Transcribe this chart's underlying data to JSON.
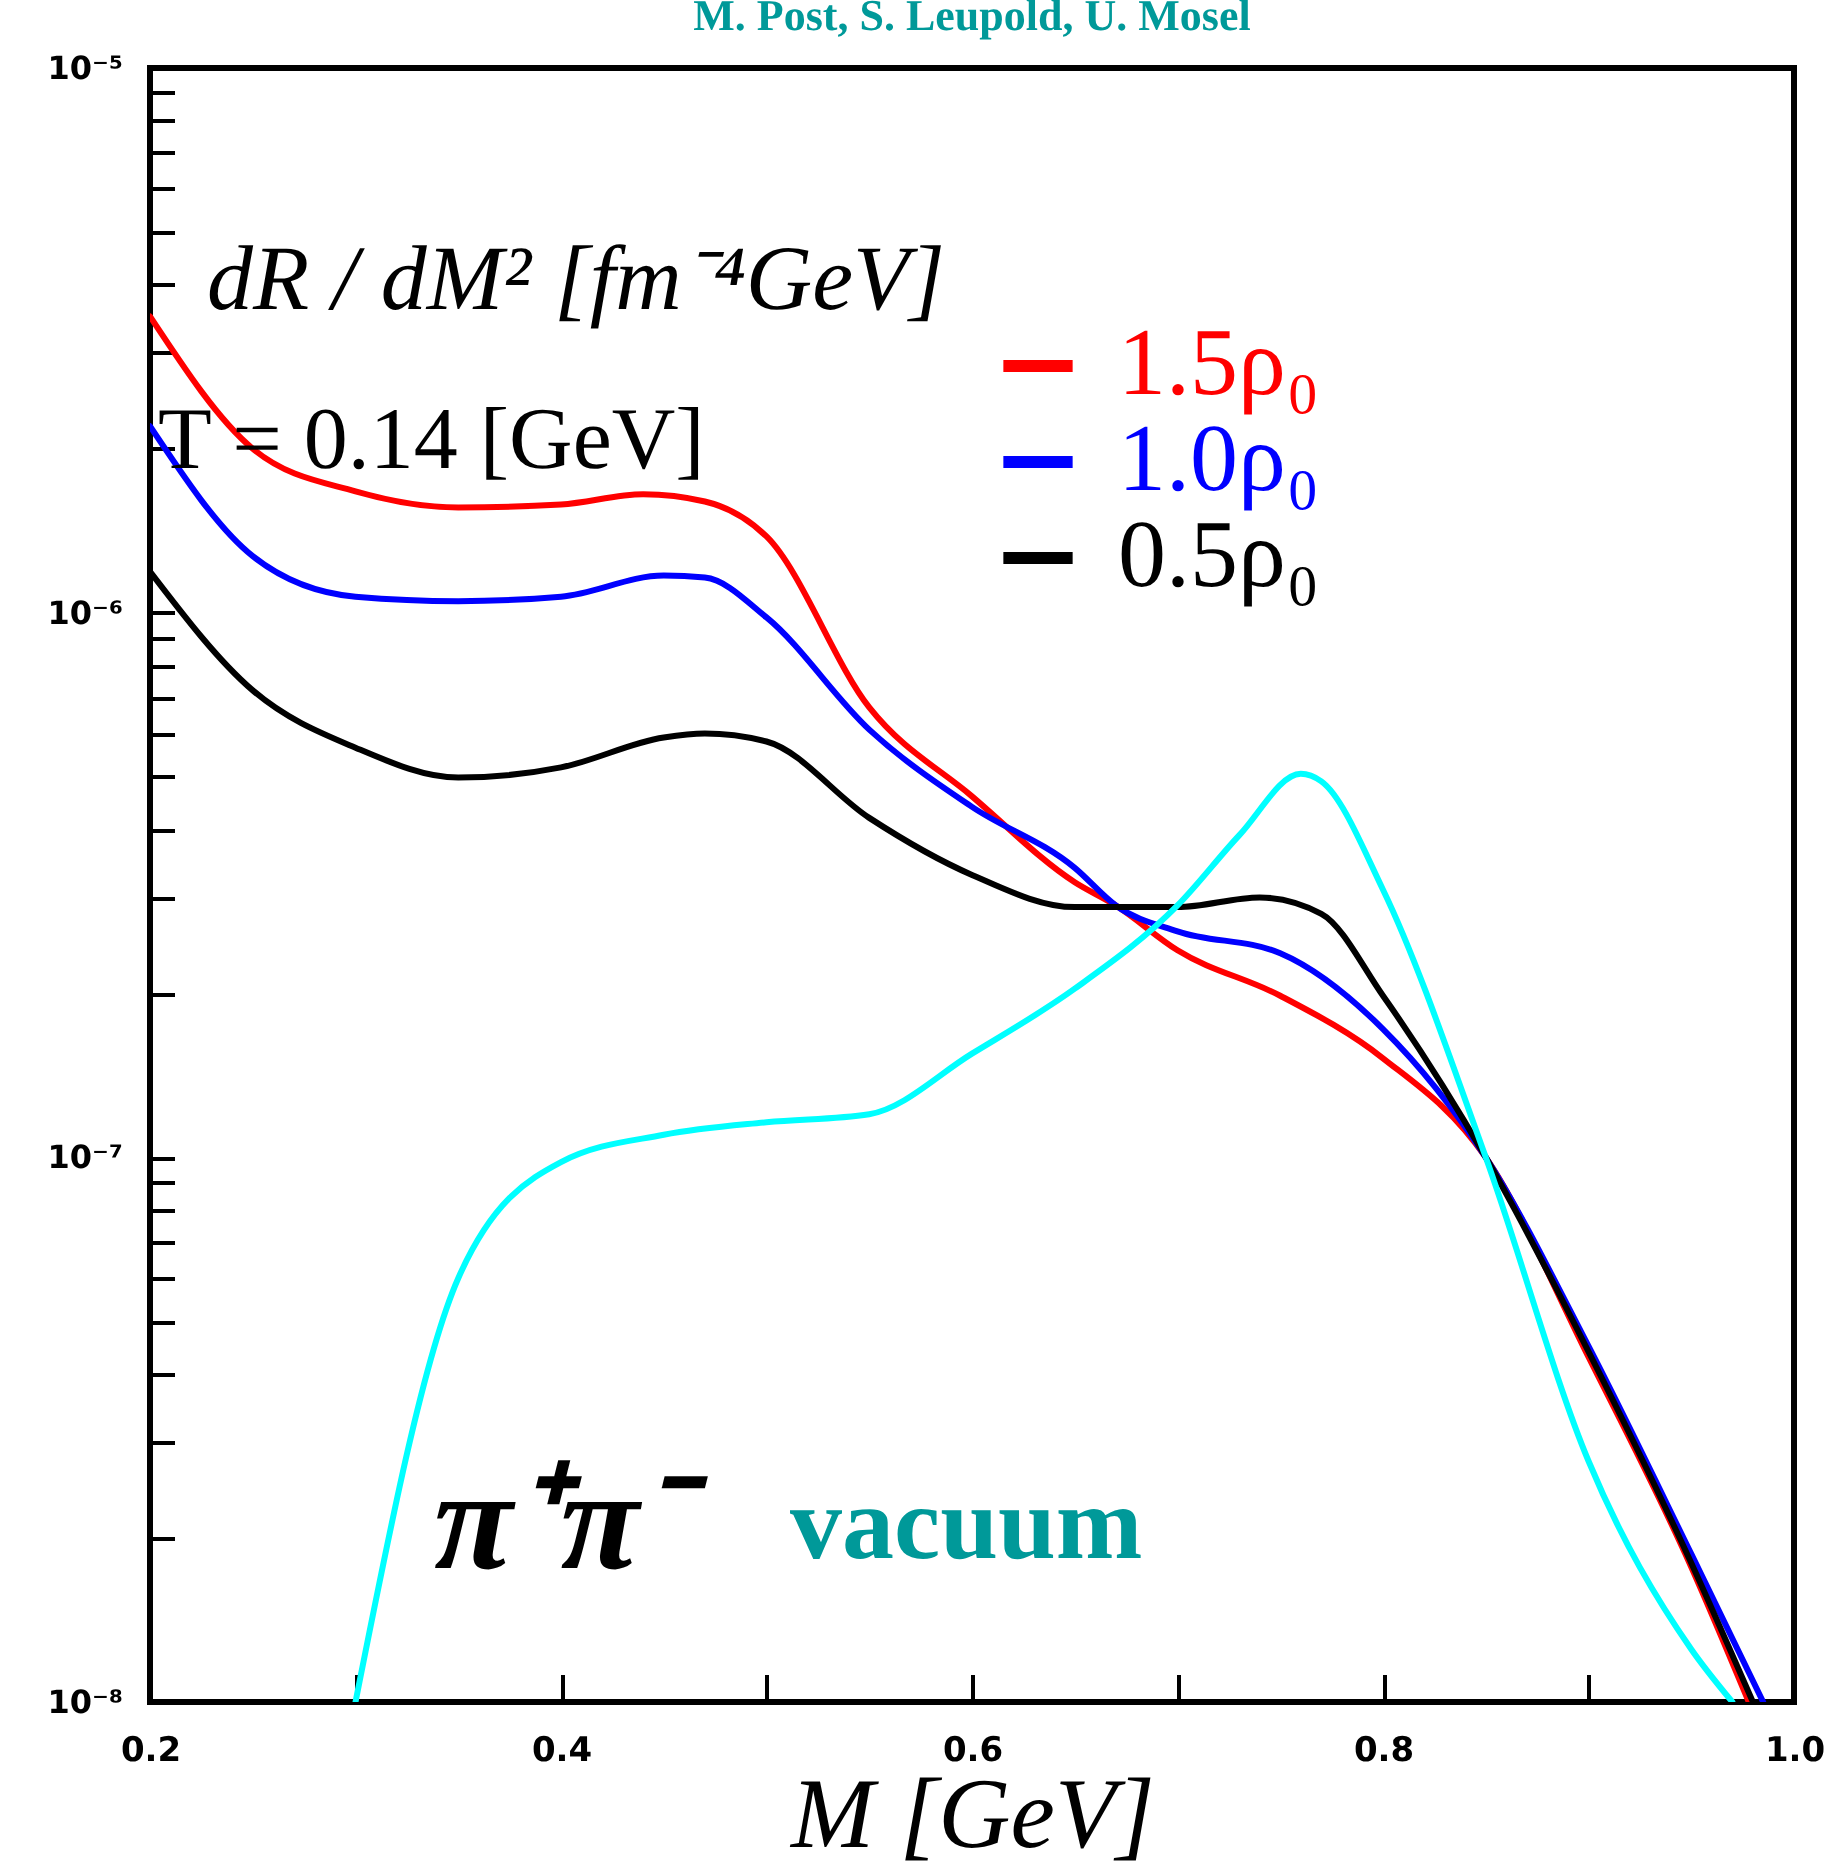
{
  "chart_data": {
    "type": "line",
    "title": "M. Post, S. Leupold, U. Mosel",
    "xlabel": "M [GeV]",
    "ylabel": "dR / dM² [fm⁻⁴GeV]",
    "log": "y",
    "legend": "top right",
    "line_style": "solid",
    "annotations": [
      "T = 0.14 [GeV]",
      "π⁺π⁻",
      "vacuum"
    ],
    "xlim": [
      0.2,
      1.0
    ],
    "xticks": [
      0.2,
      {
        "value": 0.3,
        "label": null
      },
      0.4,
      {
        "value": 0.5,
        "label": null
      },
      0.6,
      {
        "value": 0.7,
        "label": null
      },
      0.8,
      {
        "value": 0.9,
        "label": null
      },
      {
        "value": 1.0,
        "label": "1.0"
      }
    ],
    "ylim": [
      1e-08,
      1e-05
    ],
    "yticks": [
      {
        "value": 1e-08,
        "label": "10⁻⁸"
      },
      {
        "value": 2e-08,
        "label": null
      },
      {
        "value": 3e-08,
        "label": null
      },
      {
        "value": 4e-08,
        "label": null
      },
      {
        "value": 5e-08,
        "label": null
      },
      {
        "value": 6e-08,
        "label": null
      },
      {
        "value": 7e-08,
        "label": null
      },
      {
        "value": 8e-08,
        "label": null
      },
      {
        "value": 9e-08,
        "label": null
      },
      {
        "value": 1e-07,
        "label": "10⁻⁷"
      },
      {
        "value": 2e-07,
        "label": null
      },
      {
        "value": 3e-07,
        "label": null
      },
      {
        "value": 4e-07,
        "label": null
      },
      {
        "value": 5e-07,
        "label": null
      },
      {
        "value": 6e-07,
        "label": null
      },
      {
        "value": 7e-07,
        "label": null
      },
      {
        "value": 8e-07,
        "label": null
      },
      {
        "value": 9e-07,
        "label": null
      },
      {
        "value": 1e-06,
        "label": "10⁻⁶"
      },
      {
        "value": 2e-06,
        "label": null
      },
      {
        "value": 3e-06,
        "label": null
      },
      {
        "value": 4e-06,
        "label": null
      },
      {
        "value": 5e-06,
        "label": null
      },
      {
        "value": 6e-06,
        "label": null
      },
      {
        "value": 7e-06,
        "label": null
      },
      {
        "value": 8e-06,
        "label": null
      },
      {
        "value": 9e-06,
        "label": null
      },
      {
        "value": 1e-05,
        "label": "10⁻⁵"
      }
    ],
    "series": [
      {
        "name": "1.5ρ₀",
        "color": "#ff0000",
        "x": [
          0.2,
          0.25,
          0.3,
          0.35,
          0.4,
          0.44,
          0.47,
          0.5,
          0.55,
          0.6,
          0.65,
          0.67,
          0.7,
          0.75,
          0.8,
          0.85,
          0.9,
          0.95,
          0.978
        ],
        "values": [
          3.5e-06,
          2e-06,
          1.67e-06,
          1.56e-06,
          1.58e-06,
          1.65e-06,
          1.6e-06,
          1.38e-06,
          6.7e-07,
          4.6e-07,
          3.2e-07,
          2.9e-07,
          2.4e-07,
          1.98e-07,
          1.52e-07,
          1e-07,
          4.3e-08,
          1.77e-08,
          1e-08
        ]
      },
      {
        "name": "1.0ρ₀",
        "color": "#0000ff",
        "x": [
          0.2,
          0.25,
          0.3,
          0.35,
          0.4,
          0.45,
          0.47,
          0.5,
          0.55,
          0.6,
          0.65,
          0.67,
          0.7,
          0.75,
          0.8,
          0.85,
          0.9,
          0.95,
          0.985
        ],
        "values": [
          2.2e-06,
          1.27e-06,
          1.07e-06,
          1.05e-06,
          1.07e-06,
          1.17e-06,
          1.16e-06,
          9.8e-07,
          6.1e-07,
          4.4e-07,
          3.4e-07,
          2.9e-07,
          2.6e-07,
          2.37e-07,
          1.72e-07,
          1e-07,
          4.5e-08,
          1.87e-08,
          1e-08
        ]
      },
      {
        "name": "0.5ρ₀",
        "color": "#000000",
        "x": [
          0.2,
          0.25,
          0.3,
          0.35,
          0.4,
          0.45,
          0.47,
          0.5,
          0.55,
          0.6,
          0.65,
          0.7,
          0.74,
          0.77,
          0.8,
          0.85,
          0.9,
          0.95,
          0.98
        ],
        "values": [
          1.19e-06,
          7.2e-07,
          5.65e-07,
          4.98e-07,
          5.2e-07,
          5.9e-07,
          6e-07,
          5.8e-07,
          4.2e-07,
          3.3e-07,
          2.88e-07,
          2.88e-07,
          3e-07,
          2.8e-07,
          1.98e-07,
          1e-07,
          4.4e-08,
          1.8e-08,
          1e-08
        ]
      },
      {
        "color": "#00ffff",
        "x": [
          0.3,
          0.35,
          0.4,
          0.45,
          0.5,
          0.55,
          0.6,
          0.65,
          0.7,
          0.73,
          0.76,
          0.77,
          0.8,
          0.85,
          0.9,
          0.95,
          0.97
        ],
        "values": [
          1e-08,
          6e-08,
          9.8e-08,
          1.1e-07,
          1.16e-07,
          1.2e-07,
          1.55e-07,
          2.04e-07,
          2.9e-07,
          3.9e-07,
          5.06e-07,
          4.9e-07,
          3.1e-07,
          1e-07,
          2.77e-08,
          1.25e-08,
          1e-08
        ]
      }
    ]
  }
}
